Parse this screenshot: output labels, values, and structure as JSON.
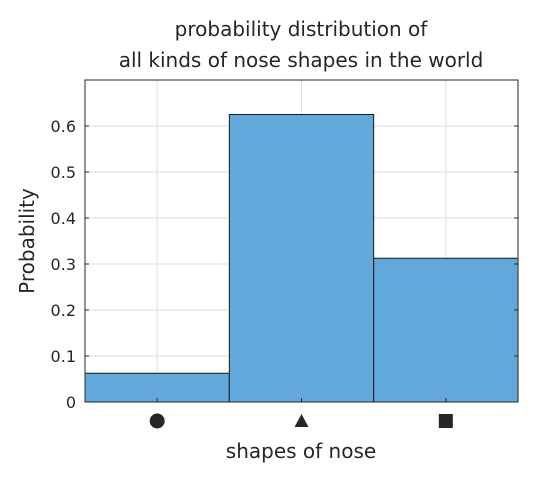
{
  "chart_data": {
    "type": "bar",
    "title": [
      "probability distribution of",
      "all kinds of nose shapes in the world"
    ],
    "xlabel": "shapes of nose",
    "ylabel": "Probability",
    "categories": [
      "circle",
      "triangle",
      "square"
    ],
    "category_icons": [
      "circle-icon",
      "triangle-icon",
      "square-icon"
    ],
    "values": [
      0.0625,
      0.625,
      0.3125
    ],
    "ylim": [
      0,
      0.7
    ],
    "yticks": [
      0,
      0.1,
      0.2,
      0.3,
      0.4,
      0.5,
      0.6
    ],
    "ytick_labels": [
      "0",
      "0.1",
      "0.2",
      "0.3",
      "0.4",
      "0.5",
      "0.6"
    ],
    "grid": true,
    "bar_color": "#62a8da",
    "bar_edge_color": "#1a1a1a"
  }
}
